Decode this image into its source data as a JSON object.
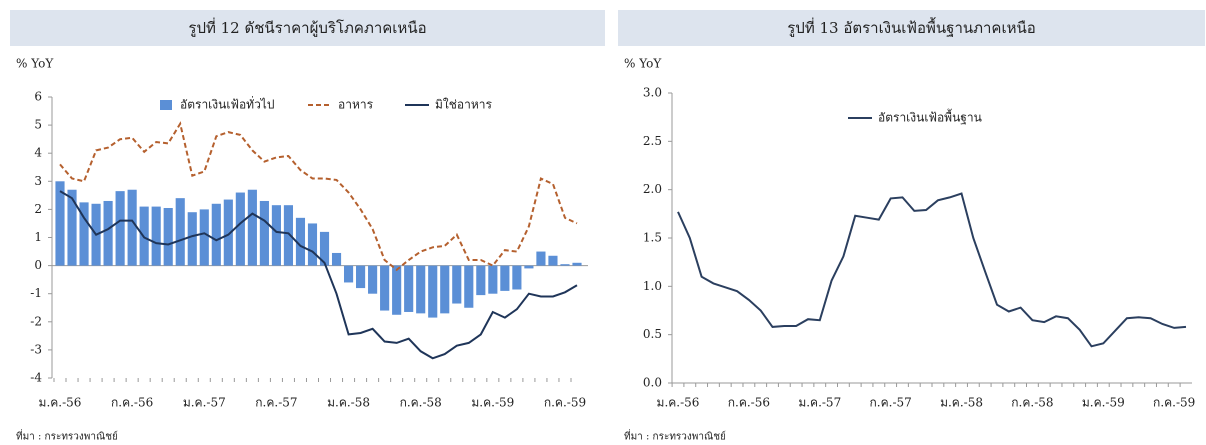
{
  "chart_data": [
    {
      "type": "bar",
      "title": "รูปที่ 12 ดัชนีราคาผู้บริโภคภาคเหนือ",
      "ylabel": "% YoY",
      "source": "ที่มา : กระทรวงพาณิชย์",
      "categories": [
        "ม.ค.-56",
        null,
        null,
        null,
        null,
        null,
        "ก.ค.-56",
        null,
        null,
        null,
        null,
        null,
        "ม.ค.-57",
        null,
        null,
        null,
        null,
        null,
        "ก.ค.-57",
        null,
        null,
        null,
        null,
        null,
        "ม.ค.-58",
        null,
        null,
        null,
        null,
        null,
        "ก.ค.-58",
        null,
        null,
        null,
        null,
        null,
        "ม.ค.-59",
        null,
        null,
        null,
        null,
        null,
        "ก.ค.-59",
        null
      ],
      "ylim": [
        -4,
        6
      ],
      "yticks": [
        -4,
        -3,
        -2,
        -1,
        0,
        1,
        2,
        3,
        4,
        5,
        6
      ],
      "series": [
        {
          "name": "อัตราเงินเฟ้อทั่วไป",
          "type": "bar",
          "color": "#5b8fd6",
          "values": [
            3.0,
            2.7,
            2.25,
            2.2,
            2.3,
            2.65,
            2.7,
            2.1,
            2.1,
            2.05,
            2.4,
            1.9,
            2.0,
            2.2,
            2.35,
            2.6,
            2.7,
            2.3,
            2.15,
            2.15,
            1.7,
            1.5,
            1.2,
            0.45,
            -0.6,
            -0.8,
            -1.0,
            -1.6,
            -1.75,
            -1.65,
            -1.7,
            -1.85,
            -1.7,
            -1.35,
            -1.5,
            -1.05,
            -1.0,
            -0.9,
            -0.85,
            -0.1,
            0.5,
            0.35,
            0.05,
            0.1
          ]
        },
        {
          "name": "อาหาร",
          "type": "line",
          "dashed": true,
          "color": "#b5602e",
          "values": [
            3.6,
            3.1,
            3.0,
            4.1,
            4.2,
            4.5,
            4.55,
            4.05,
            4.4,
            4.35,
            5.05,
            3.2,
            3.35,
            4.6,
            4.75,
            4.65,
            4.1,
            3.7,
            3.85,
            3.9,
            3.4,
            3.1,
            3.1,
            3.05,
            2.6,
            2.0,
            1.3,
            0.2,
            -0.15,
            0.2,
            0.5,
            0.65,
            0.7,
            1.1,
            0.2,
            0.2,
            0.0,
            0.55,
            0.5,
            1.4,
            3.1,
            2.9,
            1.7,
            1.5
          ]
        },
        {
          "name": "มิใช่อาหาร",
          "type": "line",
          "dashed": false,
          "color": "#1f3559",
          "values": [
            2.65,
            2.4,
            1.7,
            1.1,
            1.3,
            1.6,
            1.6,
            1.0,
            0.8,
            0.75,
            0.9,
            1.05,
            1.15,
            0.9,
            1.1,
            1.5,
            1.85,
            1.6,
            1.2,
            1.15,
            0.7,
            0.5,
            0.1,
            -1.0,
            -2.45,
            -2.4,
            -2.25,
            -2.7,
            -2.75,
            -2.6,
            -3.05,
            -3.3,
            -3.15,
            -2.85,
            -2.75,
            -2.45,
            -1.65,
            -1.85,
            -1.55,
            -1.0,
            -1.1,
            -1.1,
            -0.95,
            -0.7
          ]
        }
      ]
    },
    {
      "type": "line",
      "title": "รูปที่ 13 อัตราเงินเฟ้อพื้นฐานภาคเหนือ",
      "ylabel": "% YoY",
      "source": "ที่มา : กระทรวงพาณิชย์",
      "categories": [
        "ม.ค.-56",
        null,
        null,
        null,
        null,
        null,
        "ก.ค.-56",
        null,
        null,
        null,
        null,
        null,
        "ม.ค.-57",
        null,
        null,
        null,
        null,
        null,
        "ก.ค.-57",
        null,
        null,
        null,
        null,
        null,
        "ม.ค.-58",
        null,
        null,
        null,
        null,
        null,
        "ก.ค.-58",
        null,
        null,
        null,
        null,
        null,
        "ม.ค.-59",
        null,
        null,
        null,
        null,
        null,
        "ก.ค.-59",
        null
      ],
      "ylim": [
        0,
        3
      ],
      "yticks": [
        {
          "value": 0,
          "label": "0.0"
        },
        0.5,
        {
          "value": 1,
          "label": "1.0"
        },
        1.5,
        {
          "value": 2,
          "label": "2.0"
        },
        2.5,
        {
          "value": 3,
          "label": "3.0"
        }
      ],
      "series": [
        {
          "name": "อัตราเงินเฟ้อพื้นฐาน",
          "type": "line",
          "dashed": false,
          "color": "#2b3f5f",
          "values": [
            1.77,
            1.5,
            1.1,
            1.03,
            0.99,
            0.95,
            0.86,
            0.75,
            0.58,
            0.59,
            0.59,
            0.66,
            0.65,
            1.06,
            1.31,
            1.73,
            1.71,
            1.69,
            1.91,
            1.92,
            1.78,
            1.79,
            1.89,
            1.92,
            1.96,
            1.5,
            1.15,
            0.81,
            0.74,
            0.78,
            0.65,
            0.63,
            0.69,
            0.67,
            0.55,
            0.38,
            0.41,
            0.54,
            0.67,
            0.68,
            0.67,
            0.61,
            0.57,
            0.58
          ]
        }
      ]
    }
  ]
}
